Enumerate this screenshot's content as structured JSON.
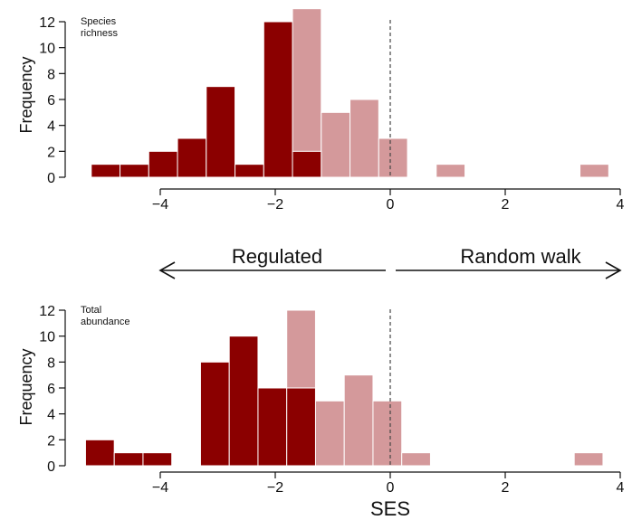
{
  "figure": {
    "xlabel": "SES",
    "arrow_left_label": "Regulated",
    "arrow_right_label": "Random walk"
  },
  "chart_data": [
    {
      "type": "bar",
      "panel_label_lines": [
        "Species",
        "richness"
      ],
      "ylabel": "Frequency",
      "xlim": [
        -5.3,
        3.9
      ],
      "ylim": [
        0,
        13
      ],
      "xticks": [
        -4,
        -2,
        0,
        2,
        4
      ],
      "xtick_labels": [
        "−4",
        "−2",
        "0",
        "2",
        "4"
      ],
      "yticks": [
        0,
        2,
        4,
        6,
        8,
        10,
        12
      ],
      "reference_line_x": 0,
      "series": [
        {
          "name": "dark",
          "color": "#8B0000",
          "bins": [
            {
              "x0": -5.2,
              "x1": -4.7,
              "value": 1
            },
            {
              "x0": -4.7,
              "x1": -4.2,
              "value": 1
            },
            {
              "x0": -4.2,
              "x1": -3.7,
              "value": 2
            },
            {
              "x0": -3.7,
              "x1": -3.2,
              "value": 3
            },
            {
              "x0": -3.2,
              "x1": -2.7,
              "value": 7
            },
            {
              "x0": -2.7,
              "x1": -2.2,
              "value": 1
            },
            {
              "x0": -2.2,
              "x1": -1.7,
              "value": 12
            },
            {
              "x0": -1.7,
              "x1": -1.2,
              "value": 2
            }
          ]
        },
        {
          "name": "light",
          "color": "#D4999B",
          "bins": [
            {
              "x0": -1.7,
              "x1": -1.2,
              "value": 13
            },
            {
              "x0": -1.2,
              "x1": -0.7,
              "value": 5
            },
            {
              "x0": -0.7,
              "x1": -0.2,
              "value": 6
            },
            {
              "x0": -0.2,
              "x1": 0.3,
              "value": 3
            },
            {
              "x0": 0.8,
              "x1": 1.3,
              "value": 1
            },
            {
              "x0": 3.3,
              "x1": 3.8,
              "value": 1
            }
          ]
        }
      ]
    },
    {
      "type": "bar",
      "panel_label_lines": [
        "Total",
        "abundance"
      ],
      "ylabel": "Frequency",
      "xlim": [
        -5.3,
        3.9
      ],
      "ylim": [
        0,
        12.2
      ],
      "xticks": [
        -4,
        -2,
        0,
        2,
        4
      ],
      "xtick_labels": [
        "−4",
        "−2",
        "0",
        "2",
        "4"
      ],
      "yticks": [
        0,
        2,
        4,
        6,
        8,
        10,
        12
      ],
      "reference_line_x": 0,
      "series": [
        {
          "name": "dark",
          "color": "#8B0000",
          "bins": [
            {
              "x0": -5.3,
              "x1": -4.8,
              "value": 2
            },
            {
              "x0": -4.8,
              "x1": -4.3,
              "value": 1
            },
            {
              "x0": -4.3,
              "x1": -3.8,
              "value": 1
            },
            {
              "x0": -3.3,
              "x1": -2.8,
              "value": 8
            },
            {
              "x0": -2.8,
              "x1": -2.3,
              "value": 10
            },
            {
              "x0": -2.3,
              "x1": -1.8,
              "value": 6
            },
            {
              "x0": -1.8,
              "x1": -1.3,
              "value": 6
            }
          ]
        },
        {
          "name": "light",
          "color": "#D4999B",
          "bins": [
            {
              "x0": -1.8,
              "x1": -1.3,
              "value": 12
            },
            {
              "x0": -1.3,
              "x1": -0.8,
              "value": 5
            },
            {
              "x0": -0.8,
              "x1": -0.3,
              "value": 7
            },
            {
              "x0": -0.3,
              "x1": 0.2,
              "value": 5
            },
            {
              "x0": 0.2,
              "x1": 0.7,
              "value": 1
            },
            {
              "x0": 3.2,
              "x1": 3.7,
              "value": 1
            }
          ]
        }
      ]
    }
  ]
}
